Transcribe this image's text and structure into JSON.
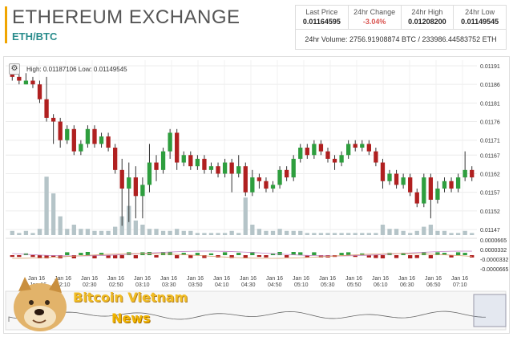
{
  "header": {
    "title": "ETHEREUM EXCHANGE",
    "pair": "ETH/BTC"
  },
  "stats": {
    "last_price_label": "Last Price",
    "last_price": "0.01164595",
    "change_label": "24hr Change",
    "change": "-3.04%",
    "high_label": "24hr High",
    "high": "0.01208200",
    "low_label": "24hr Low",
    "low": "0.01149545",
    "volume_text": "24hr Volume: 2756.91908874 BTC / 233986.44583752 ETH"
  },
  "chart_info": {
    "settings_icon": "gear-icon",
    "high_low_text": "High: 0.01187106  Low: 0.01149545"
  },
  "watermark": {
    "line1": "Bitcoin Vietnam",
    "line2": "News"
  },
  "colors": {
    "up": "#2e9e3e",
    "down": "#b02020",
    "volume": "#b5c4c8",
    "accent": "#f0a500",
    "pair": "#2a8c8c",
    "negative": "#d9534f"
  },
  "chart_data": {
    "type": "candlestick",
    "price_ticks": [
      "0.01191",
      "0.01186",
      "0.01181",
      "0.01176",
      "0.01171",
      "0.01167",
      "0.01162",
      "0.01157",
      "0.01152",
      "0.01147"
    ],
    "oscillator_ticks": [
      "0.0000665",
      "0.0000332",
      "-0.0000332",
      "-0.0000665"
    ],
    "x_labels": [
      "Jan 16",
      "02:10",
      "02:30",
      "02:50",
      "03:10",
      "03:30",
      "03:50",
      "04:10",
      "04:30",
      "04:50",
      "05:10",
      "05:30",
      "05:50",
      "06:10",
      "06:30",
      "06:50",
      "07:10"
    ],
    "x_label_top": "Jan 16",
    "candles": [
      [
        0.01189,
        0.01188,
        0.0119,
        0.01187,
        2
      ],
      [
        0.01188,
        0.01187,
        0.01189,
        0.01186,
        1
      ],
      [
        0.01186,
        0.01187,
        0.01189,
        0.01186,
        2
      ],
      [
        0.01187,
        0.01186,
        0.01188,
        0.01185,
        1
      ],
      [
        0.01186,
        0.01182,
        0.01187,
        0.01181,
        3
      ],
      [
        0.01182,
        0.01177,
        0.01188,
        0.01176,
        28
      ],
      [
        0.01177,
        0.01176,
        0.01178,
        0.0117,
        20
      ],
      [
        0.01176,
        0.01171,
        0.01177,
        0.01169,
        9
      ],
      [
        0.01171,
        0.01174,
        0.01175,
        0.0117,
        3
      ],
      [
        0.01174,
        0.01168,
        0.01175,
        0.01167,
        5
      ],
      [
        0.01168,
        0.0117,
        0.01171,
        0.01167,
        3
      ],
      [
        0.0117,
        0.01174,
        0.01175,
        0.01169,
        3
      ],
      [
        0.01174,
        0.0117,
        0.01175,
        0.01169,
        2
      ],
      [
        0.0117,
        0.01172,
        0.01173,
        0.01169,
        2
      ],
      [
        0.01172,
        0.01169,
        0.01173,
        0.01168,
        2
      ],
      [
        0.01169,
        0.01163,
        0.0117,
        0.01162,
        4
      ],
      [
        0.01163,
        0.01158,
        0.01166,
        0.01148,
        9
      ],
      [
        0.01158,
        0.01161,
        0.01165,
        0.01149,
        14
      ],
      [
        0.01161,
        0.01156,
        0.01164,
        0.0115,
        7
      ],
      [
        0.01156,
        0.01159,
        0.01161,
        0.0115,
        5
      ],
      [
        0.01159,
        0.01165,
        0.0117,
        0.01157,
        3
      ],
      [
        0.01165,
        0.01163,
        0.01167,
        0.0116,
        3
      ],
      [
        0.01163,
        0.01168,
        0.01169,
        0.01162,
        2
      ],
      [
        0.01168,
        0.01173,
        0.01174,
        0.01166,
        2
      ],
      [
        0.01173,
        0.01165,
        0.01174,
        0.01163,
        3
      ],
      [
        0.01165,
        0.01167,
        0.01168,
        0.01164,
        2
      ],
      [
        0.01167,
        0.01164,
        0.01168,
        0.01163,
        2
      ],
      [
        0.01164,
        0.01166,
        0.01167,
        0.01163,
        1
      ],
      [
        0.01166,
        0.01163,
        0.01167,
        0.01162,
        1
      ],
      [
        0.01163,
        0.01164,
        0.01165,
        0.01162,
        1
      ],
      [
        0.01164,
        0.01162,
        0.01165,
        0.01161,
        1
      ],
      [
        0.01162,
        0.01165,
        0.01166,
        0.01161,
        1
      ],
      [
        0.01165,
        0.01162,
        0.01166,
        0.01157,
        2
      ],
      [
        0.01162,
        0.01164,
        0.01167,
        0.01161,
        1
      ],
      [
        0.01164,
        0.01157,
        0.01165,
        0.01156,
        18
      ],
      [
        0.01157,
        0.01161,
        0.01163,
        0.01156,
        5
      ],
      [
        0.01161,
        0.0116,
        0.01162,
        0.01158,
        3
      ],
      [
        0.0116,
        0.01158,
        0.01161,
        0.01157,
        2
      ],
      [
        0.01158,
        0.01159,
        0.0116,
        0.01157,
        2
      ],
      [
        0.01159,
        0.01163,
        0.01164,
        0.01158,
        3
      ],
      [
        0.01163,
        0.01161,
        0.01164,
        0.0116,
        2
      ],
      [
        0.01161,
        0.01166,
        0.01167,
        0.0116,
        2
      ],
      [
        0.01166,
        0.01169,
        0.0117,
        0.01165,
        2
      ],
      [
        0.01169,
        0.01167,
        0.0117,
        0.01166,
        1
      ],
      [
        0.01167,
        0.0117,
        0.01171,
        0.01166,
        1
      ],
      [
        0.0117,
        0.01168,
        0.01171,
        0.01167,
        1
      ],
      [
        0.01168,
        0.01166,
        0.01169,
        0.01165,
        1
      ],
      [
        0.01166,
        0.01165,
        0.01167,
        0.01163,
        1
      ],
      [
        0.01165,
        0.01167,
        0.01168,
        0.01164,
        1
      ],
      [
        0.01167,
        0.0117,
        0.01171,
        0.01166,
        1
      ],
      [
        0.0117,
        0.01169,
        0.01171,
        0.01168,
        1
      ],
      [
        0.01169,
        0.0117,
        0.01171,
        0.01168,
        1
      ],
      [
        0.0117,
        0.01168,
        0.01171,
        0.01167,
        1
      ],
      [
        0.01168,
        0.01165,
        0.01169,
        0.01164,
        1
      ],
      [
        0.01165,
        0.0116,
        0.01166,
        0.01158,
        5
      ],
      [
        0.0116,
        0.01162,
        0.01163,
        0.01159,
        3
      ],
      [
        0.01162,
        0.01159,
        0.01163,
        0.01158,
        3
      ],
      [
        0.01159,
        0.01161,
        0.01162,
        0.01158,
        2
      ],
      [
        0.01161,
        0.01157,
        0.01162,
        0.01156,
        1
      ],
      [
        0.01157,
        0.01154,
        0.01158,
        0.01153,
        2
      ],
      [
        0.01154,
        0.01161,
        0.01162,
        0.01153,
        4
      ],
      [
        0.01161,
        0.01155,
        0.01162,
        0.0115,
        5
      ],
      [
        0.01155,
        0.01158,
        0.0116,
        0.01154,
        2
      ],
      [
        0.01158,
        0.0116,
        0.01161,
        0.01157,
        2
      ],
      [
        0.0116,
        0.01158,
        0.01161,
        0.01157,
        1
      ],
      [
        0.01158,
        0.01161,
        0.01162,
        0.01157,
        1
      ],
      [
        0.01161,
        0.01163,
        0.01168,
        0.0116,
        2
      ],
      [
        0.01163,
        0.01161,
        0.01164,
        0.0116,
        1
      ]
    ]
  }
}
